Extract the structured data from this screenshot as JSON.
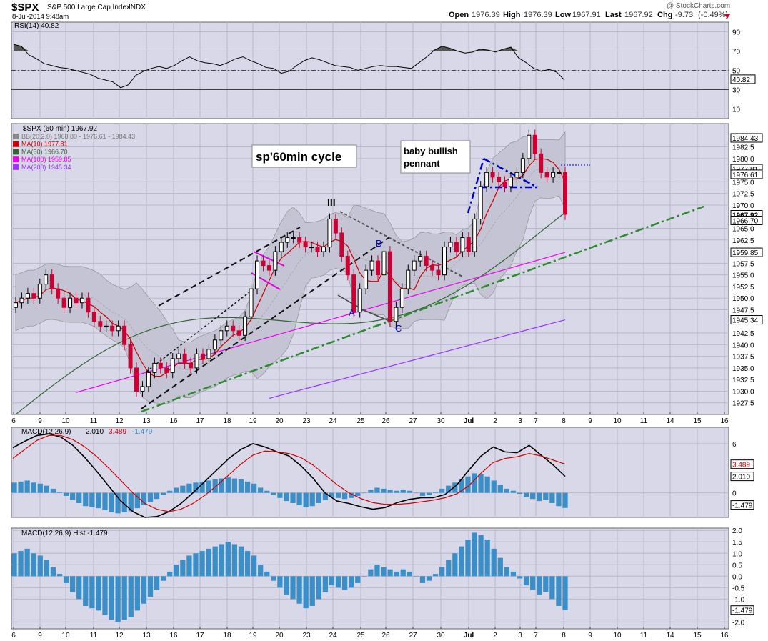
{
  "header": {
    "symbol": "$SPX",
    "name": "S&P 500 Large Cap Index",
    "exchange": "INDX",
    "date": "8-Jul-2014 9:48am",
    "watermark": "@ StockCharts.com",
    "quote": {
      "open_label": "Open",
      "open": "1976.39",
      "high_label": "High",
      "high": "1976.39",
      "low_label": "Low",
      "low": "1967.91",
      "last_label": "Last",
      "last": "1967.92",
      "chg_label": "Chg",
      "chg": "-9.73",
      "chg_pct": "(-0.49%)"
    }
  },
  "colors": {
    "panel_bg": "#d8d8e8",
    "bollinger_fill": "#c4c4d4",
    "up": "#000000",
    "down": "#cc0033",
    "ma10": "#cc0000",
    "ma50": "#336633",
    "ma100": "#ee00ee",
    "ma200": "#9933ff",
    "hist": "#3b8fc8",
    "annotation_blue": "#0000cc",
    "annotation_green": "#2e8b2e"
  },
  "chart_data": [
    {
      "type": "line",
      "panel": "rsi",
      "title": "RSI(14) 40.82",
      "ylim": [
        0,
        100
      ],
      "yticks": [
        "90",
        "70",
        "50",
        "30",
        "10"
      ],
      "ytick_values": [
        90,
        70,
        50,
        30,
        10
      ],
      "reference_lines": [
        70,
        50,
        30
      ],
      "last_value_label": "40.82",
      "series": [
        {
          "name": "RSI(14)",
          "values": [
            77,
            75,
            66,
            62,
            57,
            55,
            53,
            52,
            50,
            48,
            46,
            42,
            40,
            38,
            32,
            35,
            45,
            49,
            52,
            54,
            52,
            55,
            60,
            64,
            60,
            58,
            57,
            55,
            58,
            62,
            64,
            60,
            57,
            53,
            52,
            47,
            49,
            55,
            60,
            63,
            61,
            58,
            55,
            54,
            53,
            50,
            52,
            54,
            55,
            54,
            54,
            53,
            52,
            58,
            64,
            71,
            75,
            73,
            70,
            68,
            69,
            72,
            71,
            69,
            72,
            74,
            63,
            58,
            52,
            49,
            51,
            48,
            40
          ]
        }
      ]
    },
    {
      "type": "candlestick",
      "panel": "price",
      "title": "$SPX (60 min) 1967.92",
      "ylim": [
        1925,
        1987.5
      ],
      "yticks": [
        "1984.43",
        "1982.5",
        "1980.0",
        "1977.81",
        "1976.61",
        "1975.0",
        "1972.5",
        "1970.0",
        "1967.92",
        "1966.70",
        "1965.0",
        "1962.5",
        "1959.85",
        "1957.5",
        "1955.0",
        "1952.5",
        "1950.0",
        "1947.5",
        "1945.34",
        "1942.5",
        "1940.0",
        "1937.5",
        "1935.0",
        "1932.5",
        "1930.0",
        "1927.5"
      ],
      "ytick_values": [
        1984.43,
        1982.5,
        1980.0,
        1977.81,
        1976.61,
        1975.0,
        1972.5,
        1970.0,
        1967.92,
        1966.7,
        1965.0,
        1962.5,
        1959.85,
        1957.5,
        1955.0,
        1952.5,
        1950.0,
        1947.5,
        1945.34,
        1942.5,
        1940.0,
        1937.5,
        1935.0,
        1932.5,
        1930.0,
        1927.5
      ],
      "x_tick_labels": [
        "6",
        "9",
        "10",
        "11",
        "12",
        "13",
        "16",
        "17",
        "18",
        "19",
        "20",
        "23",
        "24",
        "25",
        "26",
        "27",
        "30",
        "Jul",
        "2",
        "3",
        "7",
        "8",
        "9",
        "10",
        "11",
        "14",
        "15",
        "16"
      ],
      "legend": [
        {
          "label": "BB(20,2.0) 1968.80 - 1976.61 - 1984.43",
          "color": "#888888"
        },
        {
          "label": "MA(10) 1977.81",
          "color": "#cc0000"
        },
        {
          "label": "MA(50) 1966.70",
          "color": "#336633"
        },
        {
          "label": "MA(100) 1959.85",
          "color": "#ee00ee"
        },
        {
          "label": "MA(200) 1945.34",
          "color": "#9933ff"
        }
      ],
      "close": [
        1949,
        1950,
        1951,
        1950,
        1953,
        1955,
        1952,
        1950,
        1948,
        1950,
        1949,
        1950,
        1947,
        1945,
        1944,
        1944,
        1943,
        1944,
        1940,
        1935,
        1930,
        1931,
        1934,
        1936,
        1935,
        1934,
        1937,
        1938,
        1936,
        1935,
        1938,
        1937,
        1939,
        1941,
        1943,
        1944,
        1943,
        1942,
        1946,
        1952,
        1958,
        1957,
        1956,
        1960,
        1962,
        1963,
        1963,
        1962,
        1961,
        1961,
        1960,
        1961,
        1967,
        1964,
        1959,
        1955,
        1947,
        1952,
        1956,
        1958,
        1955,
        1960,
        1945,
        1948,
        1952,
        1956,
        1958,
        1959,
        1957,
        1956,
        1955,
        1961,
        1962,
        1960,
        1963,
        1960,
        1967,
        1974,
        1977,
        1976,
        1975,
        1974,
        1976,
        1977,
        1980,
        1985,
        1981,
        1977,
        1976,
        1977,
        1977,
        1968
      ],
      "annotations": {
        "cycle_box": "sp'60min cycle",
        "pennant_box_line1": "baby bullish",
        "pennant_box_line2": "pennant",
        "wave_iii": "III",
        "wave_a": "A",
        "wave_b": "B",
        "wave_c": "C"
      }
    },
    {
      "type": "line",
      "panel": "macd",
      "title": "MACD(12,26,9) 2.010, 3.489, -1.479",
      "title_parts": [
        "MACD(12,26,9)",
        "2.010",
        "3.489",
        "-1.479"
      ],
      "ylim": [
        -3,
        8
      ],
      "yticks": [
        "6",
        "3.489",
        "2.010",
        "0",
        "-1.479"
      ],
      "ytick_values": [
        6,
        3.489,
        2.01,
        0,
        -1.479
      ],
      "series": [
        {
          "name": "MACD",
          "values": [
            5.5,
            6.3,
            7.0,
            7.2,
            6.8,
            5.8,
            4.3,
            2.6,
            0.8,
            -1.0,
            -2.3,
            -3.0,
            -2.9,
            -2.3,
            -1.3,
            0.0,
            1.4,
            2.8,
            4.2,
            5.3,
            6.0,
            5.6,
            5.0,
            4.5,
            3.3,
            1.8,
            0.0,
            -1.0,
            -1.3,
            -1.7,
            -2.0,
            -1.8,
            -1.2,
            -0.8,
            -0.6,
            -0.6,
            -0.2,
            1.0,
            2.8,
            4.5,
            5.6,
            5.0,
            4.9,
            5.8,
            4.6,
            3.4,
            2.0
          ]
        },
        {
          "name": "Signal",
          "values": [
            4.2,
            5.3,
            6.4,
            7.0,
            7.0,
            6.5,
            5.6,
            4.4,
            3.0,
            1.5,
            0.0,
            -1.3,
            -2.0,
            -2.3,
            -2.0,
            -1.3,
            -0.3,
            0.9,
            2.2,
            3.5,
            4.6,
            5.1,
            5.0,
            4.8,
            4.3,
            3.4,
            2.2,
            1.0,
            0.0,
            -0.7,
            -1.2,
            -1.4,
            -1.4,
            -1.3,
            -1.1,
            -0.9,
            -0.6,
            -0.1,
            0.9,
            2.4,
            3.7,
            4.2,
            4.4,
            4.8,
            4.5,
            4.0,
            3.5
          ]
        }
      ]
    },
    {
      "type": "bar",
      "panel": "macd_hist",
      "title": "MACD(12,26,9) Hist -1.479",
      "ylim": [
        -2.3,
        2.1
      ],
      "yticks": [
        "2.0",
        "1.5",
        "1.0",
        "0.5",
        "0.0",
        "-0.5",
        "-1.0",
        "-1.479",
        "-2.0"
      ],
      "ytick_values": [
        2.0,
        1.5,
        1.0,
        0.5,
        0.0,
        -0.5,
        -1.0,
        -1.479,
        -2.0
      ],
      "x_tick_labels": [
        "6",
        "9",
        "10",
        "11",
        "12",
        "13",
        "16",
        "17",
        "18",
        "19",
        "20",
        "23",
        "24",
        "25",
        "26",
        "27",
        "30",
        "Jul",
        "2",
        "3",
        "7",
        "8",
        "9",
        "10",
        "11",
        "14",
        "15",
        "16"
      ],
      "values": [
        1.0,
        1.1,
        1.2,
        1.0,
        0.9,
        0.7,
        0.4,
        0.1,
        -0.3,
        -0.7,
        -1.0,
        -1.3,
        -1.4,
        -1.5,
        -1.7,
        -1.9,
        -2.0,
        -1.9,
        -1.8,
        -1.5,
        -1.2,
        -0.9,
        -0.6,
        -0.2,
        0.2,
        0.5,
        0.7,
        0.9,
        1.0,
        1.1,
        1.2,
        1.3,
        1.4,
        1.5,
        1.4,
        1.3,
        1.1,
        0.9,
        0.5,
        0.2,
        -0.2,
        -0.5,
        -0.8,
        -1.0,
        -1.2,
        -1.4,
        -1.3,
        -1.0,
        -0.7,
        -0.4,
        -0.5,
        -0.6,
        -0.5,
        -0.3,
        0.0,
        0.3,
        0.5,
        0.4,
        0.3,
        0.2,
        0.3,
        0.2,
        0.0,
        -0.3,
        -0.2,
        0.1,
        0.4,
        0.7,
        1.0,
        1.3,
        1.6,
        1.9,
        1.8,
        1.6,
        1.2,
        0.8,
        0.4,
        0.2,
        -0.1,
        -0.4,
        -0.6,
        -0.8,
        -0.7,
        -1.0,
        -1.3,
        -1.48
      ]
    }
  ]
}
